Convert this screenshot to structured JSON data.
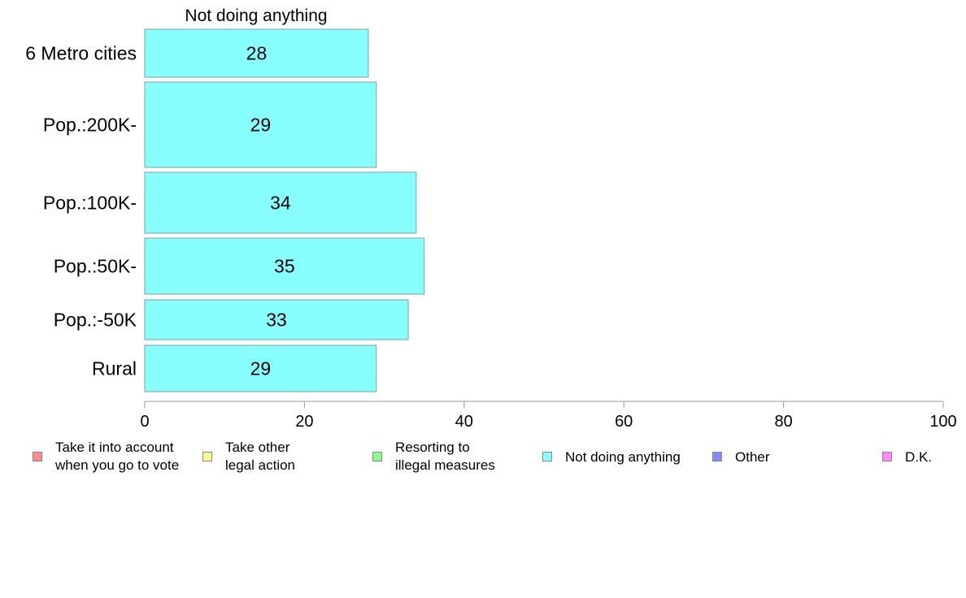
{
  "chart_data": {
    "type": "bar",
    "orientation": "horizontal",
    "title": "Not doing anything",
    "categories": [
      "6 Metro cities",
      "Pop.:200K-",
      "Pop.:100K-",
      "Pop.:50K-",
      "Pop.:-50K",
      "Rural"
    ],
    "series": [
      {
        "name": "Not doing anything",
        "values": [
          28,
          29,
          34,
          35,
          33,
          29
        ],
        "color": "#88ffff"
      }
    ],
    "xlim": [
      0,
      100
    ],
    "xticks": [
      "0",
      "20",
      "40",
      "60",
      "80",
      "100"
    ],
    "grid": false,
    "legend_position": "bottom",
    "legend": [
      {
        "label": "Take it into account\nwhen you go to vote",
        "color": "#ff8888"
      },
      {
        "label": "Take other\nlegal action",
        "color": "#ffff88"
      },
      {
        "label": "Resorting to\nillegal measures",
        "color": "#88ff88"
      },
      {
        "label": "Not doing anything",
        "color": "#88ffff"
      },
      {
        "label": "Other",
        "color": "#8888ff"
      },
      {
        "label": "D.K.",
        "color": "#ff88ff"
      }
    ]
  }
}
